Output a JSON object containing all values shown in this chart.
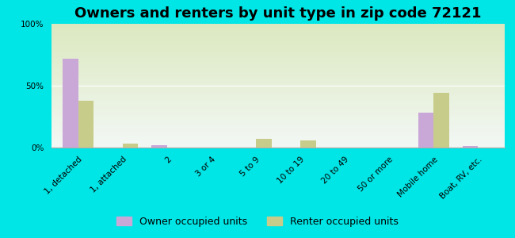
{
  "title": "Owners and renters by unit type in zip code 72121",
  "categories": [
    "1, detached",
    "1, attached",
    "2",
    "3 or 4",
    "5 to 9",
    "10 to 19",
    "20 to 49",
    "50 or more",
    "Mobile home",
    "Boat, RV, etc."
  ],
  "owner_values": [
    72,
    0,
    2,
    0,
    0,
    0,
    0,
    0,
    28,
    1
  ],
  "renter_values": [
    38,
    3,
    0,
    0,
    7,
    6,
    0,
    0,
    44,
    0
  ],
  "owner_color": "#c9a8d8",
  "renter_color": "#c8cc8a",
  "background_color": "#00e5e5",
  "yticks": [
    0,
    50,
    100
  ],
  "ytick_labels": [
    "0%",
    "50%",
    "100%"
  ],
  "ylim": [
    0,
    100
  ],
  "bar_width": 0.35,
  "legend_owner": "Owner occupied units",
  "legend_renter": "Renter occupied units",
  "title_fontsize": 13,
  "tick_fontsize": 7.5,
  "legend_fontsize": 9
}
